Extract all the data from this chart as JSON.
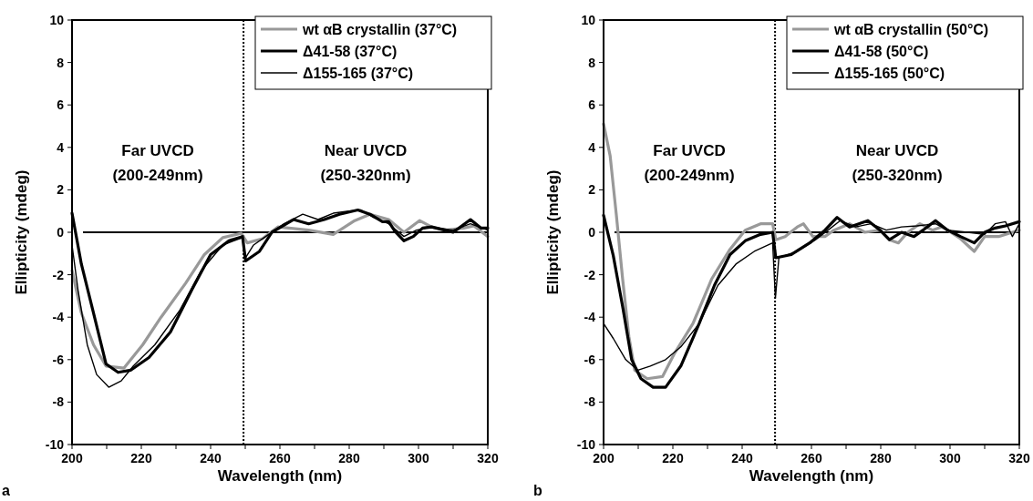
{
  "chart_data": [
    {
      "type": "line",
      "title": "a",
      "xlabel": "Wavelength (nm)",
      "ylabel": "Ellipticity (mdeg)",
      "xlim": [
        200,
        320
      ],
      "ylim": [
        -10,
        10
      ],
      "xticks": [
        200,
        {
          "value": 210,
          "label": null
        },
        220,
        {
          "value": 230,
          "label": null
        },
        240,
        {
          "value": 250,
          "label": null
        },
        260,
        {
          "value": 270,
          "label": null
        },
        280,
        {
          "value": 290,
          "label": null
        },
        300,
        {
          "value": 310,
          "label": null
        },
        320
      ],
      "yticks": [
        -10,
        -8,
        -6,
        -4,
        -2,
        0,
        2,
        4,
        6,
        8,
        10
      ],
      "legend": "top right",
      "grid": false,
      "marker": "none",
      "line_style": "solid",
      "annotations": [
        "Far UVCD (200-249nm)",
        "Near UVCD (250-320nm)"
      ],
      "ref_lines": [
        {
          "axis": "y",
          "value": 0,
          "color": "#000000",
          "line_style": "solid"
        },
        {
          "axis": "x",
          "value": 249.5,
          "color": "#000000",
          "line_style": "dotted"
        }
      ],
      "series": [
        {
          "name": "wt αB crystallin (37°C)",
          "color": "#999999",
          "x": [
            200,
            202.7,
            206.2,
            209.8,
            215,
            220.4,
            225.7,
            232.8,
            238.2,
            243.5,
            248.8,
            250.6,
            255,
            259.4,
            268.3,
            275.4,
            281.6,
            286,
            291.4,
            295.8,
            300.3,
            303.8,
            308,
            313,
            316,
            320
          ],
          "values": [
            -1.8,
            -3.8,
            -5.3,
            -6.3,
            -6.4,
            -5.3,
            -4,
            -2.4,
            -1.05,
            -0.25,
            -0.05,
            -0.5,
            -0.3,
            0.25,
            0.1,
            -0.1,
            0.55,
            0.85,
            0.6,
            0,
            0.55,
            0.25,
            0.1,
            0.2,
            0.3,
            -0.2
          ]
        },
        {
          "name": "Δ41-58 (37°C)",
          "color": "#000000",
          "x": [
            200,
            202.7,
            206.2,
            209.8,
            213.3,
            216.9,
            222.2,
            228.4,
            234.6,
            240,
            245.3,
            249.2,
            250.1,
            254.1,
            257.7,
            263.9,
            268.3,
            272.8,
            277.2,
            282.5,
            286,
            289.6,
            291.4,
            293.2,
            295.8,
            298.5,
            301.2,
            303.8,
            310,
            315,
            318,
            320
          ],
          "values": [
            0.9,
            -1.5,
            -3.8,
            -6.2,
            -6.6,
            -6.5,
            -5.9,
            -4.7,
            -2.7,
            -1.05,
            -0.4,
            -0.2,
            -1.35,
            -0.9,
            0,
            0.6,
            0.4,
            0.6,
            0.85,
            1.05,
            0.85,
            0.5,
            0.5,
            0.05,
            -0.4,
            -0.2,
            0.2,
            0.25,
            0,
            0.6,
            0.2,
            0.2
          ]
        },
        {
          "name": "Δ155-165 (37°C)",
          "color": "#000000",
          "x": [
            200,
            201.8,
            204.4,
            207.1,
            210.6,
            214.2,
            217.7,
            223.9,
            231,
            237.3,
            243.5,
            249.2,
            250.1,
            252.4,
            255.9,
            261.2,
            266.6,
            271,
            275.4,
            279.9,
            283.4,
            287,
            291.4,
            295.8,
            299.4,
            303.8,
            310,
            315,
            320
          ],
          "values": [
            -0.6,
            -2.8,
            -5.3,
            -6.7,
            -7.3,
            -7,
            -6.3,
            -5.3,
            -3.7,
            -1.8,
            -0.6,
            -0.25,
            -1.2,
            -0.6,
            -0.2,
            0.4,
            0.85,
            0.6,
            0.9,
            1,
            1.05,
            0.7,
            0.4,
            -0.2,
            0.1,
            0.25,
            0.1,
            0.4,
            0.1
          ]
        }
      ]
    },
    {
      "type": "line",
      "title": "b",
      "xlabel": "Wavelength (nm)",
      "ylabel": "Ellipticity (mdeg)",
      "xlim": [
        200,
        320
      ],
      "ylim": [
        -10,
        10
      ],
      "xticks": [
        200,
        {
          "value": 210,
          "label": null
        },
        220,
        {
          "value": 230,
          "label": null
        },
        240,
        {
          "value": 250,
          "label": null
        },
        260,
        {
          "value": 270,
          "label": null
        },
        280,
        {
          "value": 290,
          "label": null
        },
        300,
        {
          "value": 310,
          "label": null
        },
        320
      ],
      "yticks": [
        -10,
        -8,
        -6,
        -4,
        -2,
        0,
        2,
        4,
        6,
        8,
        10
      ],
      "legend": "top right",
      "grid": false,
      "marker": "none",
      "line_style": "solid",
      "annotations": [
        "Far UVCD (200-249nm)",
        "Near UVCD (250-320nm)"
      ],
      "ref_lines": [
        {
          "axis": "y",
          "value": 0,
          "color": "#000000",
          "line_style": "solid"
        },
        {
          "axis": "x",
          "value": 249.5,
          "color": "#000000",
          "line_style": "dotted"
        }
      ],
      "series": [
        {
          "name": "wt αB crystallin (50°C)",
          "color": "#999999",
          "x": [
            200,
            201.9,
            203.7,
            205.5,
            207.3,
            209,
            212.6,
            217,
            220.5,
            225.8,
            231.2,
            236.5,
            240.9,
            245.3,
            248.8,
            249.7,
            252.4,
            255.9,
            257.7,
            260.4,
            263.9,
            266.5,
            271,
            275.4,
            279.8,
            282.5,
            285.1,
            287.8,
            291.3,
            294.9,
            297.5,
            299.3,
            303,
            307,
            310,
            314,
            318,
            320
          ],
          "values": [
            5.1,
            3.6,
            0.8,
            -2.2,
            -4.9,
            -6.5,
            -6.9,
            -6.8,
            -5.7,
            -4.3,
            -2.2,
            -0.8,
            0.1,
            0.4,
            0.4,
            -0.35,
            -0.2,
            0.25,
            0.4,
            -0.2,
            -0.2,
            0.1,
            0.4,
            0,
            0.1,
            -0.35,
            -0.5,
            0,
            0.4,
            0.1,
            0.25,
            0.1,
            -0.3,
            -0.9,
            -0.2,
            -0.2,
            0,
            0.1
          ]
        },
        {
          "name": "Δ41-58 (50°C)",
          "color": "#000000",
          "x": [
            200,
            202.8,
            205.5,
            208.1,
            210.8,
            214.3,
            217.9,
            222.3,
            227.6,
            232,
            236.5,
            240.9,
            245.3,
            248.8,
            249.7,
            254.2,
            259.5,
            263.9,
            267.4,
            271,
            276.3,
            279.8,
            282.5,
            286,
            289.6,
            292.2,
            295.8,
            299.3,
            303,
            307,
            310,
            313,
            316,
            320
          ],
          "values": [
            0.8,
            -1.1,
            -3.5,
            -6,
            -6.9,
            -7.3,
            -7.3,
            -6.3,
            -4.3,
            -2.5,
            -1.05,
            -0.4,
            -0.1,
            0,
            -1.2,
            -1.05,
            -0.5,
            0.1,
            0.7,
            0.25,
            0.55,
            0.1,
            -0.35,
            0,
            -0.2,
            0.1,
            0.55,
            0.1,
            -0.2,
            -0.5,
            0,
            0.2,
            0.3,
            0.5
          ]
        },
        {
          "name": "Δ155-165 (50°C)",
          "color": "#000000",
          "x": [
            200,
            202.8,
            206.4,
            209.9,
            213.5,
            217.9,
            222.3,
            227.6,
            233,
            238.2,
            243.5,
            248.8,
            249.6,
            250.6,
            255.9,
            261.2,
            264.8,
            268.3,
            272.7,
            277.2,
            281.6,
            286,
            290.4,
            295.8,
            299.3,
            305,
            310,
            313,
            316,
            318,
            320
          ],
          "values": [
            -4.3,
            -5,
            -6,
            -6.5,
            -6.3,
            -6,
            -5.4,
            -4.3,
            -2.5,
            -1.5,
            -0.9,
            -0.5,
            -3.1,
            -1.2,
            -0.9,
            -0.35,
            0.1,
            0.55,
            0.25,
            0.4,
            0.1,
            0.25,
            0.3,
            0.4,
            0.1,
            0,
            -0.1,
            0.4,
            0.5,
            -0.2,
            0.4
          ]
        }
      ]
    }
  ]
}
